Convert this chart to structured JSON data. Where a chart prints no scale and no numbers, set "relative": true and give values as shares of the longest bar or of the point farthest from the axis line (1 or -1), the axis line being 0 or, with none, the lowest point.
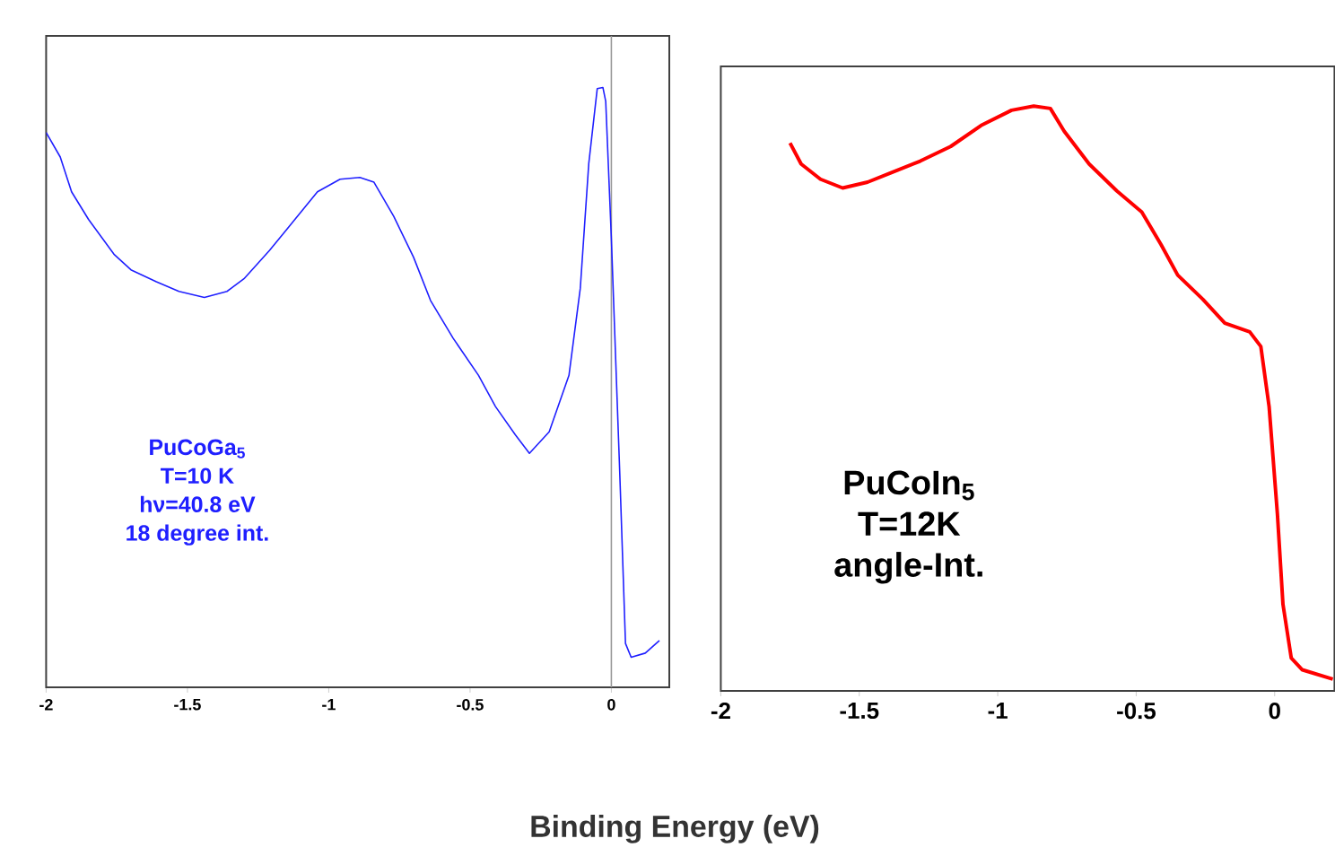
{
  "chart_data": [
    {
      "type": "line",
      "relative": true,
      "xlabel": "Binding Energy (eV)",
      "xlim": [
        -2,
        0.205
      ],
      "xticks": [
        -2,
        -1.5,
        -1,
        -0.5,
        0
      ],
      "series": [
        {
          "color": "#1f1fff",
          "x": [
            -2.0,
            -1.95,
            -1.91,
            -1.85,
            -1.76,
            -1.7,
            -1.61,
            -1.53,
            -1.44,
            -1.36,
            -1.3,
            -1.21,
            -1.13,
            -1.04,
            -0.96,
            -0.89,
            -0.84,
            -0.77,
            -0.7,
            -0.64,
            -0.56,
            -0.47,
            -0.41,
            -0.34,
            -0.29,
            -0.22,
            -0.15,
            -0.11,
            -0.08,
            -0.05,
            -0.03,
            -0.02,
            0.0,
            0.03,
            0.05,
            0.07,
            0.12,
            0.17
          ],
          "values": [
            0.925,
            0.884,
            0.826,
            0.78,
            0.722,
            0.696,
            0.676,
            0.66,
            0.65,
            0.66,
            0.681,
            0.728,
            0.774,
            0.826,
            0.847,
            0.85,
            0.842,
            0.785,
            0.717,
            0.645,
            0.582,
            0.52,
            0.468,
            0.421,
            0.39,
            0.426,
            0.52,
            0.665,
            0.873,
            0.998,
            1.0,
            0.977,
            0.748,
            0.353,
            0.073,
            0.05,
            0.057,
            0.078
          ]
        }
      ],
      "ref_lines": [
        {
          "axis": "x",
          "value": 0,
          "color": "#999999"
        }
      ],
      "annotations": [
        "PuCoGa$_{5}$",
        "T=10 K",
        "hν=40.8 eV",
        "18 degree int."
      ]
    },
    {
      "type": "line",
      "relative": true,
      "xlim": [
        -2,
        0.216
      ],
      "xticks": [
        -2,
        -1.5,
        -1,
        -0.5,
        0
      ],
      "series": [
        {
          "color": "#ff0000",
          "x": [
            -1.75,
            -1.71,
            -1.64,
            -1.56,
            -1.47,
            -1.39,
            -1.28,
            -1.17,
            -1.06,
            -0.95,
            -0.87,
            -0.81,
            -0.76,
            -0.67,
            -0.57,
            -0.48,
            -0.41,
            -0.35,
            -0.26,
            -0.18,
            -0.09,
            -0.05,
            -0.02,
            0.01,
            0.03,
            0.06,
            0.1,
            0.21
          ],
          "values": [
            0.937,
            0.901,
            0.875,
            0.86,
            0.87,
            0.885,
            0.906,
            0.931,
            0.967,
            0.993,
            1.0,
            0.996,
            0.957,
            0.901,
            0.855,
            0.819,
            0.763,
            0.711,
            0.67,
            0.629,
            0.614,
            0.589,
            0.486,
            0.302,
            0.148,
            0.056,
            0.036,
            0.02
          ]
        }
      ],
      "annotations": [
        "PuCoIn$_{5}$",
        "T=12K",
        "angle-Int."
      ]
    }
  ]
}
